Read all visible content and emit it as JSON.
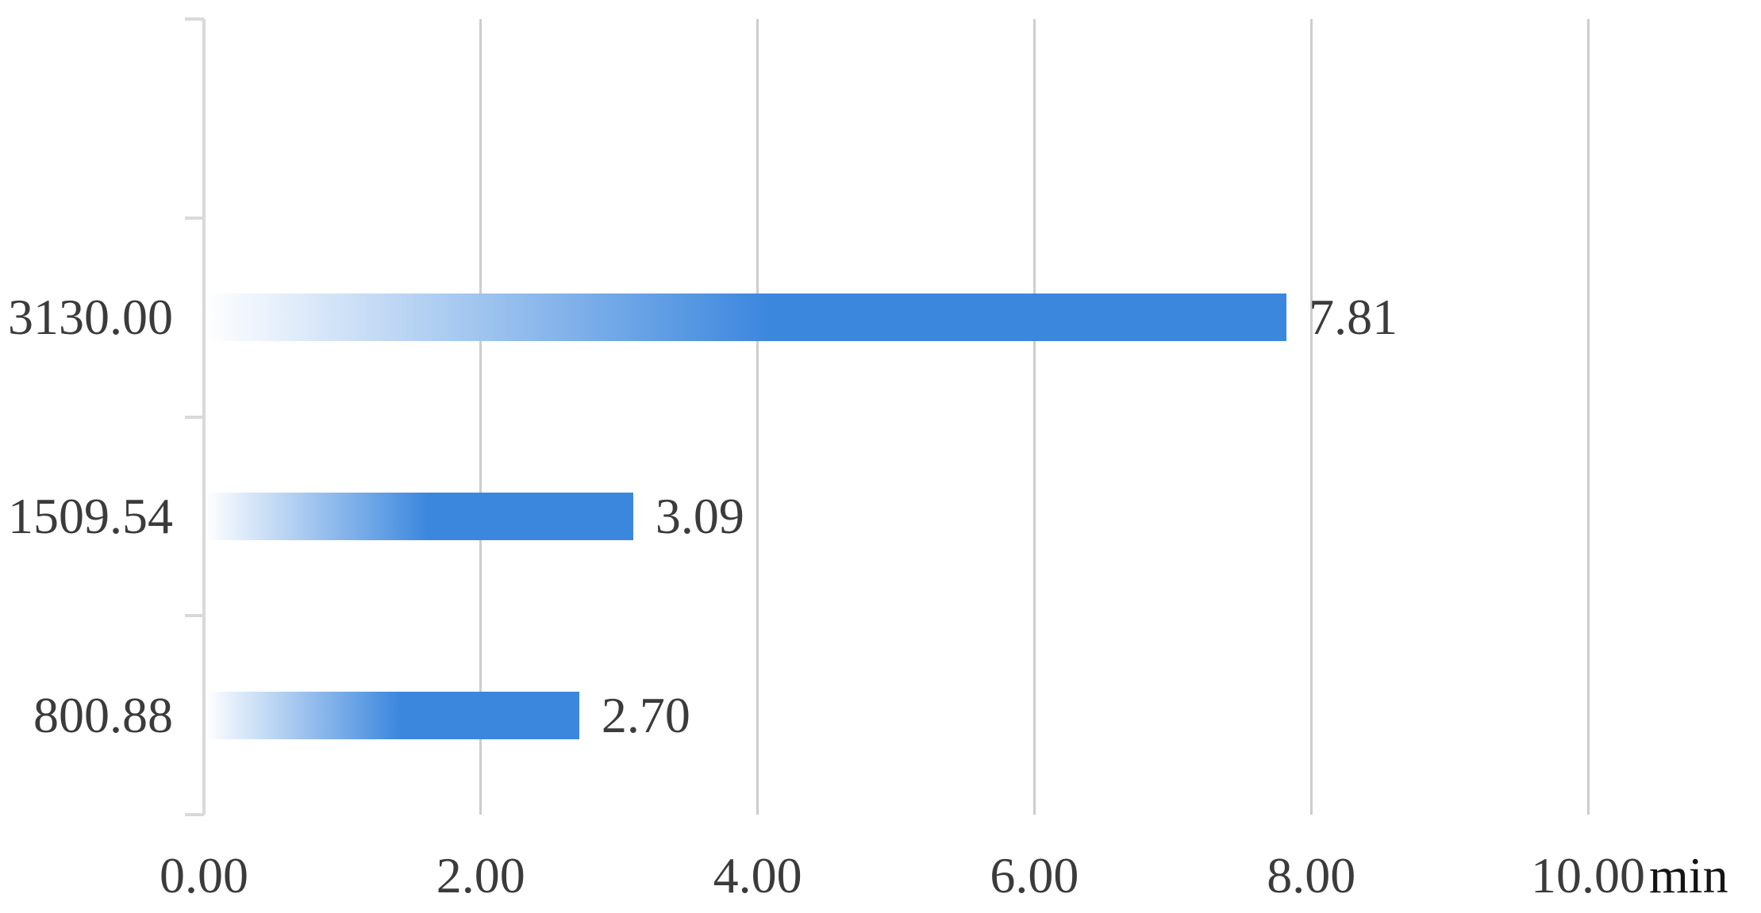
{
  "chart_data": {
    "type": "bar",
    "orientation": "horizontal",
    "title": "",
    "xlabel": "min",
    "ylabel": "",
    "xlim": [
      0,
      10
    ],
    "x_tick_interval": 2,
    "x_ticks": [
      {
        "value": 0,
        "label": "0.00"
      },
      {
        "value": 2,
        "label": "2.00"
      },
      {
        "value": 4,
        "label": "4.00"
      },
      {
        "value": 6,
        "label": "6.00"
      },
      {
        "value": 8,
        "label": "8.00"
      },
      {
        "value": 10,
        "label": "10.00"
      }
    ],
    "categories": [
      "3130.00",
      "1509.54",
      "800.88"
    ],
    "values": [
      7.81,
      3.09,
      2.7
    ],
    "value_labels": [
      "7.81",
      "3.09",
      "2.70"
    ],
    "empty_top_category_slot": true,
    "grid": "vertical",
    "legend": "none",
    "colors": {
      "bar": "#3C87DE",
      "bar_gradient_start": "#FFFFFF",
      "axis": "#D9D9D9",
      "gridline": "#CDCDCD",
      "text": "#3B3B3B",
      "unit_text": "#141414"
    }
  }
}
